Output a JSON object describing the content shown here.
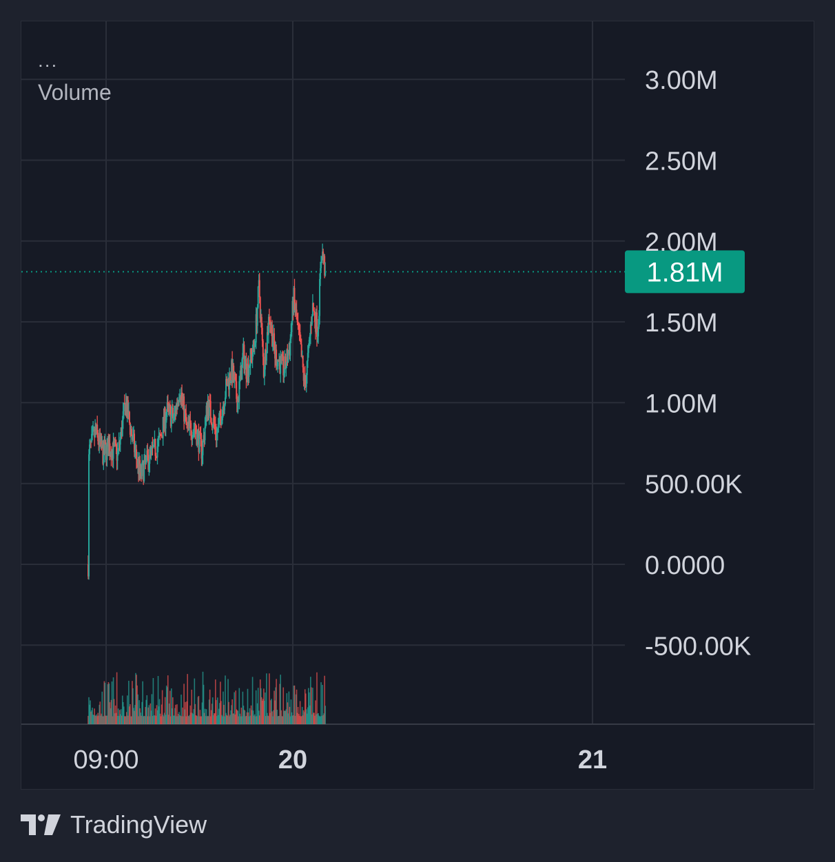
{
  "overlay": {
    "dots": "...",
    "title": "Volume"
  },
  "brand": {
    "name": "TradingView",
    "logo_icon": "tradingview-logo-icon"
  },
  "colors": {
    "background": "#1e222d",
    "panel": "#161a25",
    "grid": "#2a2e39",
    "up": "#26a69a",
    "down": "#ef5350",
    "last_price_tag": "#089981",
    "axis_text": "#d1d4dc"
  },
  "chart_data": {
    "type": "candlestick",
    "title": "",
    "ylabel": "",
    "ylim": [
      -950000,
      3400000
    ],
    "y_ticks": [
      {
        "value": 3000000,
        "label": "3.00M"
      },
      {
        "value": 2500000,
        "label": "2.50M"
      },
      {
        "value": 2000000,
        "label": "2.00M"
      },
      {
        "value": 1500000,
        "label": "1.50M"
      },
      {
        "value": 1000000,
        "label": "1.00M"
      },
      {
        "value": 500000,
        "label": "500.00K"
      },
      {
        "value": 0,
        "label": "0.0000"
      },
      {
        "value": -500000,
        "label": "-500.00K"
      }
    ],
    "x_ticks": [
      {
        "label": "09:00",
        "bold": false
      },
      {
        "label": "20",
        "bold": true
      },
      {
        "label": "21",
        "bold": true
      }
    ],
    "last_value": {
      "value": 1810000,
      "label": "1.81M"
    },
    "grid": true,
    "anchors": [
      {
        "t": 0.0,
        "v": 0
      },
      {
        "t": 0.004,
        "v": 690000
      },
      {
        "t": 0.04,
        "v": 820000
      },
      {
        "t": 0.08,
        "v": 680000
      },
      {
        "t": 0.11,
        "v": 730000
      },
      {
        "t": 0.16,
        "v": 680000
      },
      {
        "t": 0.2,
        "v": 1000000
      },
      {
        "t": 0.25,
        "v": 700000
      },
      {
        "t": 0.28,
        "v": 550000
      },
      {
        "t": 0.32,
        "v": 650000
      },
      {
        "t": 0.38,
        "v": 750000
      },
      {
        "t": 0.42,
        "v": 950000
      },
      {
        "t": 0.46,
        "v": 900000
      },
      {
        "t": 0.49,
        "v": 1100000
      },
      {
        "t": 0.53,
        "v": 830000
      },
      {
        "t": 0.57,
        "v": 850000
      },
      {
        "t": 0.61,
        "v": 700000
      },
      {
        "t": 0.64,
        "v": 1000000
      },
      {
        "t": 0.69,
        "v": 800000
      },
      {
        "t": 0.74,
        "v": 1100000
      },
      {
        "t": 0.77,
        "v": 1200000
      },
      {
        "t": 0.8,
        "v": 1000000
      },
      {
        "t": 0.83,
        "v": 1300000
      },
      {
        "t": 0.85,
        "v": 1200000
      },
      {
        "t": 0.89,
        "v": 1350000
      },
      {
        "t": 0.915,
        "v": 1720000
      },
      {
        "t": 0.94,
        "v": 1200000
      },
      {
        "t": 0.97,
        "v": 1550000
      },
      {
        "t": 1.0,
        "v": 1300000
      },
      {
        "t": 1.05,
        "v": 1200000
      },
      {
        "t": 1.08,
        "v": 1350000
      },
      {
        "t": 1.1,
        "v": 1650000
      },
      {
        "t": 1.14,
        "v": 1300000
      },
      {
        "t": 1.16,
        "v": 1100000
      },
      {
        "t": 1.18,
        "v": 1300000
      },
      {
        "t": 1.2,
        "v": 1600000
      },
      {
        "t": 1.23,
        "v": 1450000
      },
      {
        "t": 1.25,
        "v": 1950000
      },
      {
        "t": 1.27,
        "v": 1810000
      }
    ],
    "volume_max_fraction": 0.075
  }
}
